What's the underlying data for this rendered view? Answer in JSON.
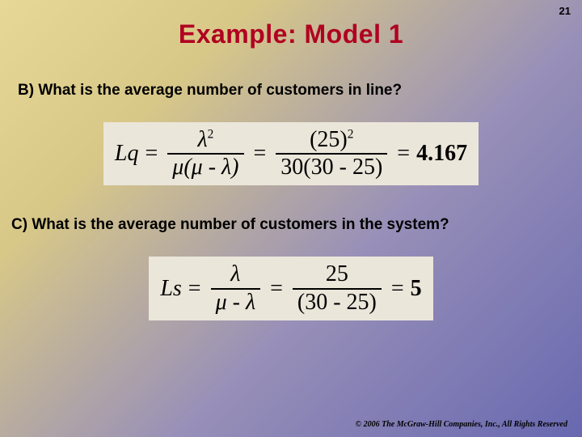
{
  "page_number": "21",
  "title": "Example:  Model 1",
  "question_b": "B)  What is the average number of customers in line?",
  "question_c": "C)  What is the average number of customers in the system?",
  "eq_b": {
    "lhs": "Lq",
    "sym_num": "λ",
    "sym_exp": "2",
    "sym_den": "μ(μ - λ)",
    "num_num_base": "(25)",
    "num_num_exp": "2",
    "num_den": "30(30 - 25)",
    "result": "4.167"
  },
  "eq_c": {
    "lhs": "Ls",
    "sym_num": "λ",
    "sym_den": "μ - λ",
    "num_num": "25",
    "num_den": "(30 - 25)",
    "result": "5"
  },
  "copyright": "© 2006 The McGraw-Hill Companies, Inc., All Rights Reserved",
  "colors": {
    "title": "#b00020",
    "eq_bg": "#ebe6da",
    "grad_start": "#e8d898",
    "grad_end": "#6868b0"
  }
}
